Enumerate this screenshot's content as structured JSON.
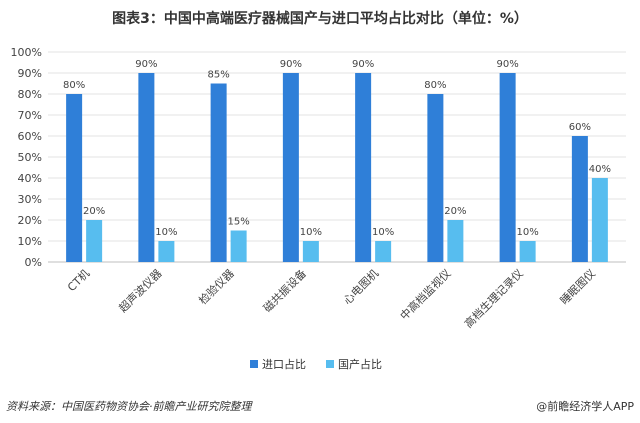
{
  "title": "图表3：中国中高端医疗器械国产与进口平均占比对比（单位：%）",
  "source": "资料来源：中国医药物资协会·前瞻产业研究院整理",
  "brand": "@前瞻经济学人APP",
  "colors": {
    "import": "#2F7FD8",
    "domestic": "#57BDEF",
    "grid": "#E3E3E3",
    "axis": "#BFBFBF"
  },
  "chart_data": {
    "type": "bar",
    "title": "图表3：中国中高端医疗器械国产与进口平均占比对比（单位：%）",
    "categories": [
      "CT机",
      "超声波仪器",
      "检验仪器",
      "磁共振设备",
      "心电图机",
      "中高档监视仪",
      "高档生理记录仪",
      "睡眠图仪"
    ],
    "series": [
      {
        "name": "进口占比",
        "values": [
          80,
          90,
          85,
          90,
          90,
          80,
          90,
          60
        ]
      },
      {
        "name": "国产占比",
        "values": [
          20,
          10,
          15,
          10,
          10,
          20,
          10,
          40
        ]
      }
    ],
    "ylim": [
      0,
      100
    ],
    "yticks": [
      "0%",
      "10%",
      "20%",
      "30%",
      "40%",
      "50%",
      "60%",
      "70%",
      "80%",
      "90%",
      "100%"
    ],
    "legend": "bottom",
    "grid": true
  }
}
